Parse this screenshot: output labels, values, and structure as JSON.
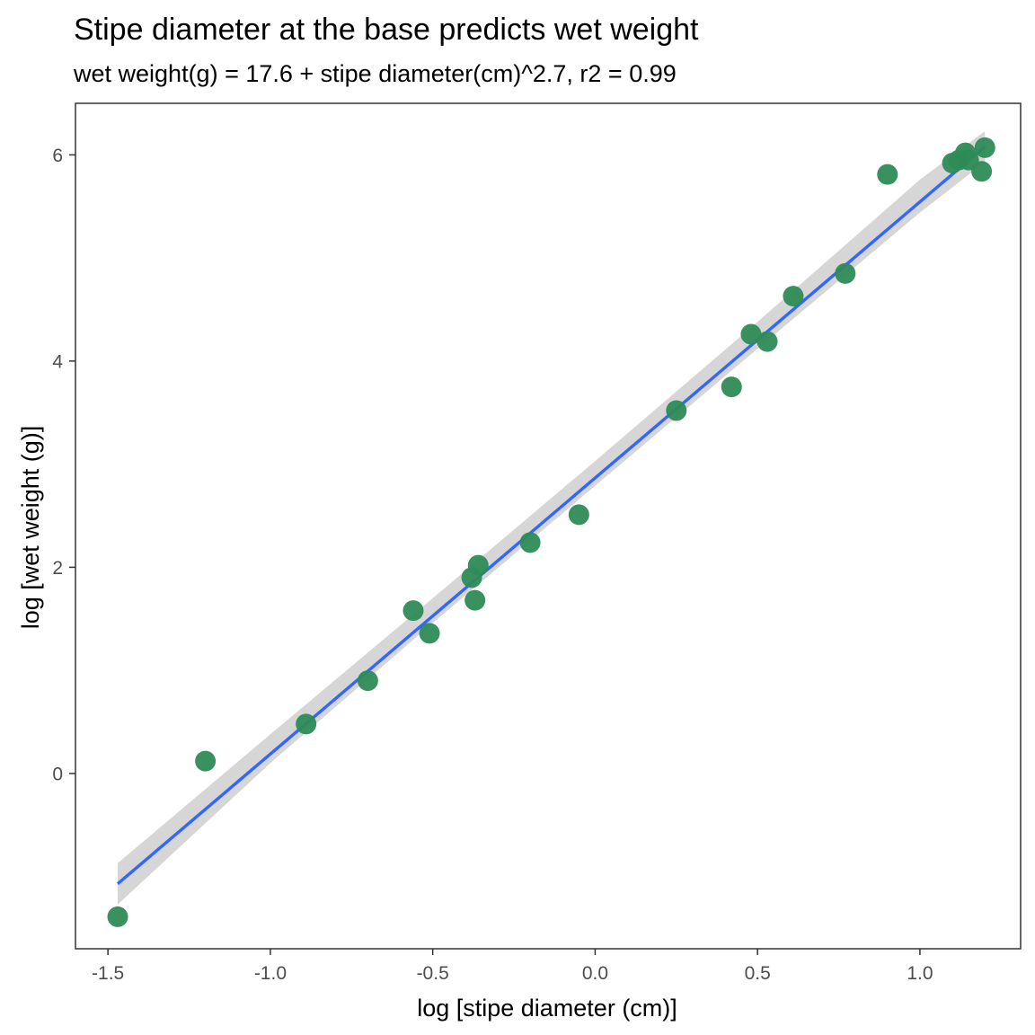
{
  "chart_data": {
    "type": "scatter",
    "title": "Stipe diameter at the base predicts wet weight",
    "subtitle": "wet weight(g) = 17.6 + stipe diameter(cm)^2.7, r2 = 0.99",
    "xlabel": "log [stipe diameter (cm)]",
    "ylabel": "log [wet weight (g)]",
    "xlim": [
      -1.6,
      1.31
    ],
    "ylim": [
      -1.7,
      6.5
    ],
    "x_ticks": [
      -1.5,
      -1.0,
      -0.5,
      0.0,
      0.5,
      1.0
    ],
    "x_tick_labels": [
      "-1.5",
      "-1.0",
      "-0.5",
      "0.0",
      "0.5",
      "1.0"
    ],
    "y_ticks": [
      0,
      2,
      4,
      6
    ],
    "y_tick_labels": [
      "0",
      "2",
      "4",
      "6"
    ],
    "grid": false,
    "points": [
      {
        "x": -1.47,
        "y": -1.39
      },
      {
        "x": -1.2,
        "y": 0.12
      },
      {
        "x": -0.89,
        "y": 0.48
      },
      {
        "x": -0.7,
        "y": 0.9
      },
      {
        "x": -0.56,
        "y": 1.58
      },
      {
        "x": -0.51,
        "y": 1.36
      },
      {
        "x": -0.38,
        "y": 1.9
      },
      {
        "x": -0.37,
        "y": 1.68
      },
      {
        "x": -0.36,
        "y": 2.02
      },
      {
        "x": -0.2,
        "y": 2.24
      },
      {
        "x": -0.05,
        "y": 2.51
      },
      {
        "x": 0.25,
        "y": 3.52
      },
      {
        "x": 0.42,
        "y": 3.75
      },
      {
        "x": 0.48,
        "y": 4.26
      },
      {
        "x": 0.53,
        "y": 4.19
      },
      {
        "x": 0.61,
        "y": 4.63
      },
      {
        "x": 0.77,
        "y": 4.85
      },
      {
        "x": 0.9,
        "y": 5.81
      },
      {
        "x": 1.1,
        "y": 5.92
      },
      {
        "x": 1.12,
        "y": 5.95
      },
      {
        "x": 1.14,
        "y": 6.02
      },
      {
        "x": 1.15,
        "y": 5.95
      },
      {
        "x": 1.19,
        "y": 5.84
      },
      {
        "x": 1.2,
        "y": 6.07
      }
    ],
    "fit_line": {
      "x": [
        -1.47,
        1.2
      ],
      "y": [
        -1.07,
        6.08
      ]
    },
    "confidence_band": {
      "x": [
        -1.47,
        -1.0,
        -0.5,
        0.0,
        0.5,
        1.0,
        1.2
      ],
      "lower": [
        -1.27,
        0.1,
        1.46,
        2.79,
        4.12,
        5.44,
        5.93
      ],
      "upper": [
        -0.87,
        0.38,
        1.7,
        3.03,
        4.38,
        5.76,
        6.23
      ]
    },
    "colors": {
      "points": "#2e8b57",
      "fit_line": "#3366ff",
      "band": "#cccccc",
      "panel_border": "#333333",
      "tick_text": "#4d4d4d"
    }
  }
}
